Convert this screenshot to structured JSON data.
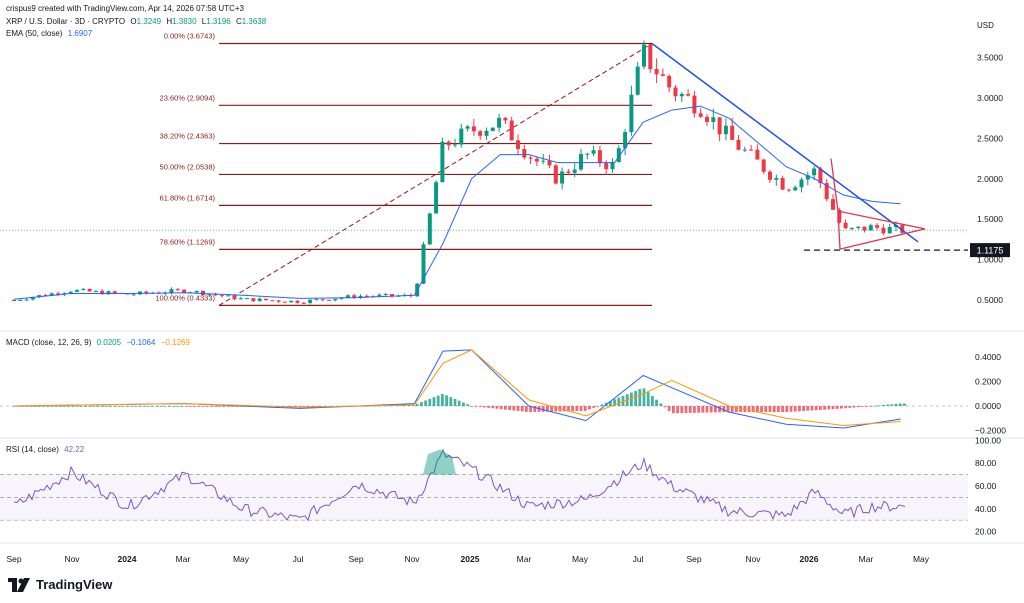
{
  "header": {
    "created_by": "crispus9 created with TradingView.com, Apr 14, 2026 07:58 UTC+3",
    "symbol": "XRP / U.S. Dollar · 3D · CRYPTO",
    "ohlc": {
      "o": "1.3249",
      "h": "1.3830",
      "l": "1.3196",
      "c": "1.3638"
    },
    "ema_label": "EMA (50, close)",
    "ema_value": "1.6907",
    "currency": "USD"
  },
  "price_axis_ticks": [
    "3.5000",
    "3.0000",
    "2.5000",
    "2.0000",
    "1.5000",
    "1.0000",
    "0.5000"
  ],
  "support_label": "1.1175",
  "fib_levels": [
    {
      "label": "0.00% (3.6743)",
      "price": 3.6743
    },
    {
      "label": "23.60% (2.9094)",
      "price": 2.9094
    },
    {
      "label": "38.20% (2.4363)",
      "price": 2.4363
    },
    {
      "label": "50.00% (2.0538)",
      "price": 2.0538
    },
    {
      "label": "61.80% (1.6714)",
      "price": 1.6714
    },
    {
      "label": "78.60% (1.1269)",
      "price": 1.1269
    },
    {
      "label": "100.00% (0.4333)",
      "price": 0.4333
    }
  ],
  "macd": {
    "label": "MACD (close, 12, 26, 9)",
    "values": [
      "0.0205",
      "−0.1064",
      "−0.1269"
    ],
    "axis_ticks": [
      "0.4000",
      "0.2000",
      "0.0000",
      "−0.2000"
    ]
  },
  "rsi": {
    "label": "RSI (14, close)",
    "value": "42.22",
    "axis_ticks": [
      "100.00",
      "80.00",
      "60.00",
      "40.00",
      "20.00"
    ]
  },
  "time_axis": [
    "Sep",
    "Nov",
    "2024",
    "Mar",
    "May",
    "Jul",
    "Sep",
    "Nov",
    "2025",
    "Mar",
    "May",
    "Jul",
    "Sep",
    "Nov",
    "2026",
    "Mar",
    "May"
  ],
  "brand": "TradingView",
  "colors": {
    "up": "#089981",
    "down": "#f23645",
    "ema": "#2962ff",
    "fib": "#8b1a1a",
    "trend": "#1e53e5",
    "triangle": "#e0364d",
    "signal": "#ff9800",
    "rsi": "#7e57c2"
  },
  "chart_data": {
    "type": "candlestick",
    "title": "XRP / U.S. Dollar · 3D · CRYPTO",
    "x": [
      "2023-09",
      "2023-11",
      "2024-01",
      "2024-03",
      "2024-05",
      "2024-07",
      "2024-09",
      "2024-11",
      "2024-12",
      "2025-01",
      "2025-02",
      "2025-03",
      "2025-04",
      "2025-05",
      "2025-06",
      "2025-07",
      "2025-08",
      "2025-09",
      "2025-10",
      "2025-11",
      "2025-12",
      "2026-01",
      "2026-02",
      "2026-03",
      "2026-04"
    ],
    "series": [
      {
        "name": "XRP / U.S. Dollar",
        "values": [
          0.5,
          0.62,
          0.57,
          0.62,
          0.51,
          0.48,
          0.55,
          0.55,
          2.4,
          2.6,
          2.7,
          2.3,
          2.0,
          2.3,
          2.15,
          3.55,
          3.1,
          2.9,
          2.5,
          2.2,
          1.9,
          2.1,
          1.35,
          1.4,
          1.3638
        ]
      },
      {
        "name": "EMA (50, close)",
        "values": [
          0.51,
          0.58,
          0.58,
          0.59,
          0.56,
          0.52,
          0.53,
          0.56,
          1.2,
          2.0,
          2.3,
          2.3,
          2.2,
          2.2,
          2.2,
          2.7,
          2.85,
          2.9,
          2.75,
          2.45,
          2.15,
          2.0,
          1.8,
          1.72,
          1.6907
        ]
      }
    ],
    "ylim": [
      0.3,
      3.8
    ],
    "ylabel": "USD",
    "trendlines": {
      "support": 1.1175
    },
    "macd_series": [
      {
        "name": "MACD",
        "x": [
          "2023-09",
          "2024-03",
          "2024-07",
          "2024-11",
          "2024-12",
          "2025-01",
          "2025-03",
          "2025-05",
          "2025-07",
          "2025-08",
          "2025-10",
          "2025-12",
          "2026-02",
          "2026-04"
        ],
        "values": [
          0.0,
          0.02,
          -0.02,
          0.02,
          0.45,
          0.46,
          0.0,
          -0.12,
          0.25,
          0.15,
          -0.05,
          -0.15,
          -0.18,
          -0.1064
        ]
      },
      {
        "name": "Signal",
        "x": [
          "2023-09",
          "2024-03",
          "2024-07",
          "2024-11",
          "2024-12",
          "2025-01",
          "2025-03",
          "2025-05",
          "2025-07",
          "2025-08",
          "2025-10",
          "2025-12",
          "2026-02",
          "2026-04"
        ],
        "values": [
          0.0,
          0.02,
          -0.01,
          0.01,
          0.35,
          0.46,
          0.05,
          -0.08,
          0.1,
          0.21,
          0.0,
          -0.1,
          -0.16,
          -0.1269
        ]
      }
    ],
    "macd_ylim": [
      -0.25,
      0.5
    ],
    "rsi_series": {
      "x": [
        "2023-09",
        "2023-11",
        "2024-01",
        "2024-03",
        "2024-05",
        "2024-07",
        "2024-09",
        "2024-11",
        "2024-12",
        "2025-01",
        "2025-03",
        "2025-05",
        "2025-07",
        "2025-08",
        "2025-10",
        "2025-12",
        "2026-01",
        "2026-02",
        "2026-03",
        "2026-04"
      ],
      "values": [
        42,
        72,
        42,
        70,
        40,
        30,
        62,
        45,
        88,
        75,
        42,
        48,
        80,
        60,
        38,
        34,
        55,
        35,
        42,
        42.22
      ]
    },
    "rsi_ylim": [
      10,
      100
    ]
  }
}
